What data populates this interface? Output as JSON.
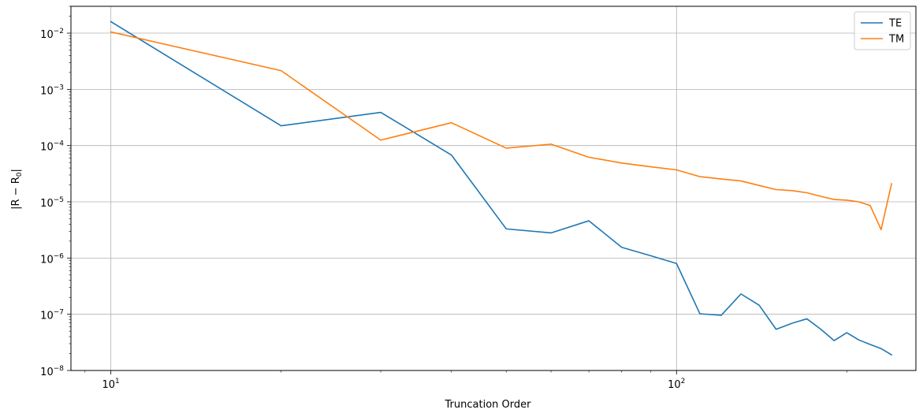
{
  "chart_data": {
    "type": "line",
    "xlabel": "Truncation Order",
    "ylabel": "|R − R",
    "ylabel_sub": "0",
    "ylabel_end": "|",
    "xscale": "log",
    "yscale": "log",
    "xlim": [
      8.5,
      265
    ],
    "ylim": [
      1e-08,
      0.03
    ],
    "grid": true,
    "legend_position": "top-right",
    "x_ticks": [
      {
        "value": 10,
        "base": "10",
        "exp": "1"
      },
      {
        "value": 100,
        "base": "10",
        "exp": "2"
      }
    ],
    "y_ticks": [
      {
        "value": 1e-08,
        "base": "10",
        "exp": "−8"
      },
      {
        "value": 1e-07,
        "base": "10",
        "exp": "−7"
      },
      {
        "value": 1e-06,
        "base": "10",
        "exp": "−6"
      },
      {
        "value": 1e-05,
        "base": "10",
        "exp": "−5"
      },
      {
        "value": 0.0001,
        "base": "10",
        "exp": "−4"
      },
      {
        "value": 0.001,
        "base": "10",
        "exp": "−3"
      },
      {
        "value": 0.01,
        "base": "10",
        "exp": "−2"
      }
    ],
    "series": [
      {
        "name": "TE",
        "color": "#1f77b4",
        "x": [
          10,
          20,
          30,
          40,
          50,
          60,
          70,
          80,
          90,
          100,
          110,
          120,
          130,
          140,
          150,
          160,
          170,
          180,
          190,
          200,
          210,
          220,
          230,
          240
        ],
        "y": [
          0.016,
          0.000225,
          0.00039,
          6.8e-05,
          3.3e-06,
          2.8e-06,
          4.6e-06,
          1.55e-06,
          1.1e-06,
          8e-07,
          1.02e-07,
          9.6e-08,
          2.3e-07,
          1.45e-07,
          5.4e-08,
          6.9e-08,
          8.3e-08,
          5.4e-08,
          3.4e-08,
          4.7e-08,
          3.5e-08,
          2.9e-08,
          2.45e-08,
          1.9e-08
        ]
      },
      {
        "name": "TM",
        "color": "#ff7f0e",
        "x": [
          10,
          20,
          30,
          40,
          50,
          60,
          70,
          80,
          90,
          100,
          110,
          120,
          130,
          140,
          150,
          160,
          170,
          180,
          190,
          200,
          210,
          220,
          230,
          240
        ],
        "y": [
          0.0105,
          0.00215,
          0.000125,
          0.000255,
          9e-05,
          0.000106,
          6.2e-05,
          4.9e-05,
          4.2e-05,
          3.7e-05,
          2.8e-05,
          2.55e-05,
          2.35e-05,
          1.95e-05,
          1.65e-05,
          1.58e-05,
          1.45e-05,
          1.25e-05,
          1.1e-05,
          1.07e-05,
          1e-05,
          8.6e-06,
          3.2e-06,
          2.1e-05
        ]
      }
    ]
  }
}
